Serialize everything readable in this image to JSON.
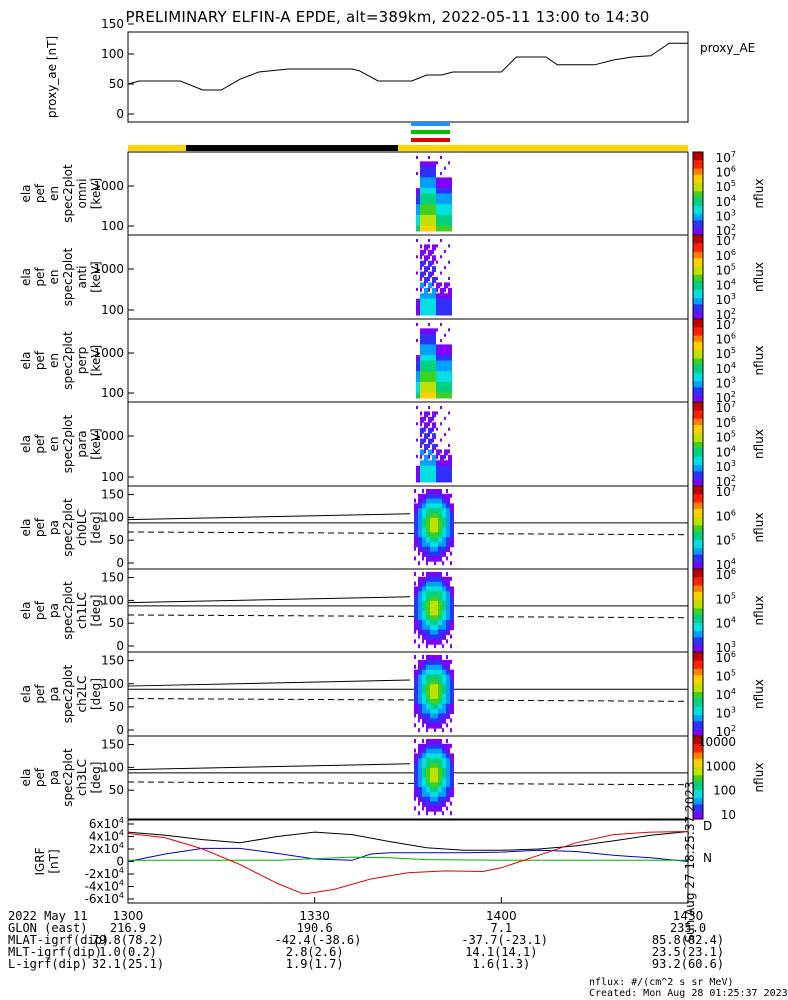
{
  "title": "PRELIMINARY ELFIN-A EPDE, alt=389km, 2022-05-11 13:00 to 14:30",
  "side_stamp": "Sun Aug 27 18:25:37 2023",
  "colors": {
    "science_bar": "#ffd400",
    "science_bar_dark": "#000000",
    "indicator_blue": "#1e90ff",
    "indicator_green": "#00c000",
    "indicator_red": "#e00000",
    "colorbar": [
      "#ffffff",
      "#7f00ff",
      "#3030ff",
      "#00a0ff",
      "#00e0e0",
      "#00d080",
      "#40d020",
      "#c0e000",
      "#ffd000",
      "#ff8000",
      "#ff2000",
      "#c00000"
    ]
  },
  "chart_data": [
    {
      "id": "proxy_ae",
      "type": "line",
      "title": "",
      "ylabel": "proxy_ae [nT]",
      "legend": "proxy_AE",
      "ylim": [
        0,
        150
      ],
      "yticks": [
        "0",
        "50",
        "100",
        "150"
      ],
      "x": [
        13.0,
        13.03,
        13.1,
        13.14,
        13.2,
        13.25,
        13.3,
        13.33,
        13.35,
        13.43,
        13.47,
        13.5,
        13.56,
        13.6,
        13.62,
        13.67,
        13.72,
        13.76,
        13.8,
        13.84,
        13.87,
        13.9,
        13.95,
        14.0,
        14.04,
        14.08,
        14.12,
        14.15,
        14.2,
        14.25,
        14.3,
        14.35,
        14.4,
        14.45,
        14.47,
        14.5
      ],
      "y": [
        50,
        55,
        55,
        55,
        40,
        40,
        58,
        65,
        70,
        75,
        75,
        75,
        75,
        75,
        72,
        55,
        55,
        55,
        65,
        65,
        70,
        70,
        70,
        70,
        95,
        95,
        95,
        82,
        82,
        82,
        90,
        95,
        97,
        118,
        118,
        118
      ]
    },
    {
      "id": "omni",
      "type": "heatmap",
      "ylabel": [
        "ela",
        "pef",
        "en",
        "spec2plot",
        "omni",
        "[keV]"
      ],
      "yticks": [
        "100",
        "1000"
      ],
      "colorbar_label": "nflux",
      "colorbar_ticks": [
        "10^2",
        "10^3",
        "10^4",
        "10^5",
        "10^6",
        "10^7"
      ]
    },
    {
      "id": "anti",
      "type": "heatmap",
      "ylabel": [
        "ela",
        "pef",
        "en",
        "spec2plot",
        "anti",
        "[keV]"
      ],
      "yticks": [
        "100",
        "1000"
      ],
      "colorbar_label": "nflux",
      "colorbar_ticks": [
        "10^2",
        "10^3",
        "10^4",
        "10^5",
        "10^6",
        "10^7"
      ]
    },
    {
      "id": "perp",
      "type": "heatmap",
      "ylabel": [
        "ela",
        "pef",
        "en",
        "spec2plot",
        "perp",
        "[keV]"
      ],
      "yticks": [
        "100",
        "1000"
      ],
      "colorbar_label": "nflux",
      "colorbar_ticks": [
        "10^2",
        "10^3",
        "10^4",
        "10^5",
        "10^6",
        "10^7"
      ]
    },
    {
      "id": "para",
      "type": "heatmap",
      "ylabel": [
        "ela",
        "pef",
        "en",
        "spec2plot",
        "para",
        "[keV]"
      ],
      "yticks": [
        "100",
        "1000"
      ],
      "colorbar_label": "nflux",
      "colorbar_ticks": [
        "10^2",
        "10^3",
        "10^4",
        "10^5",
        "10^6",
        "10^7"
      ]
    },
    {
      "id": "ch0LC",
      "type": "heatmap",
      "ylabel": [
        "ela",
        "pef",
        "pa",
        "spec2plot",
        "ch0LC",
        "[deg]"
      ],
      "yticks": [
        "0",
        "50",
        "100",
        "150"
      ],
      "colorbar_label": "nflux",
      "colorbar_ticks": [
        "10^4",
        "10^5",
        "10^6",
        "10^7"
      ]
    },
    {
      "id": "ch1LC",
      "type": "heatmap",
      "ylabel": [
        "ela",
        "pef",
        "pa",
        "spec2plot",
        "ch1LC",
        "[deg]"
      ],
      "yticks": [
        "0",
        "50",
        "100",
        "150"
      ],
      "colorbar_label": "nflux",
      "colorbar_ticks": [
        "10^3",
        "10^4",
        "10^5",
        "10^6"
      ]
    },
    {
      "id": "ch2LC",
      "type": "heatmap",
      "ylabel": [
        "ela",
        "pef",
        "pa",
        "spec2plot",
        "ch2LC",
        "[deg]"
      ],
      "yticks": [
        "0",
        "50",
        "100",
        "150"
      ],
      "colorbar_label": "nflux",
      "colorbar_ticks": [
        "10^2",
        "10^3",
        "10^4",
        "10^5",
        "10^6"
      ]
    },
    {
      "id": "ch3LC",
      "type": "heatmap",
      "ylabel": [
        "ela",
        "pef",
        "pa",
        "spec2plot",
        "ch3LC",
        "[deg]"
      ],
      "yticks": [
        "50",
        "100",
        "150"
      ],
      "colorbar_label": "nflux",
      "colorbar_ticks": [
        "10",
        "100",
        "1000",
        "10000"
      ]
    },
    {
      "id": "igrf",
      "type": "line",
      "ylabel": [
        "IGRF",
        "[nT]"
      ],
      "ylim": [
        -60000,
        60000
      ],
      "yticks": [
        "-6x10^4",
        "-4x10^4",
        "-2x10^4",
        "0",
        "2x10^4",
        "4x10^4",
        "6x10^4"
      ],
      "legend_labels": [
        "D",
        "N"
      ],
      "series": [
        {
          "name": "",
          "color": "#000000",
          "x": [
            13.0,
            13.1,
            13.2,
            13.3,
            13.4,
            13.5,
            13.6,
            13.7,
            13.8,
            13.9,
            14.0,
            14.1,
            14.2,
            14.3,
            14.4,
            14.5
          ],
          "y": [
            47000,
            42000,
            35000,
            30000,
            40000,
            47000,
            43000,
            32000,
            22000,
            18000,
            18000,
            20000,
            25000,
            33000,
            42000,
            48000
          ]
        },
        {
          "name": "",
          "color": "#0000c0",
          "x": [
            13.0,
            13.1,
            13.2,
            13.3,
            13.4,
            13.5,
            13.6,
            13.65,
            13.7,
            13.8,
            13.9,
            14.0,
            14.1,
            14.2,
            14.3,
            14.4,
            14.5
          ],
          "y": [
            0,
            12000,
            21000,
            21000,
            13000,
            4000,
            2000,
            12000,
            14000,
            14000,
            14000,
            15000,
            18000,
            16000,
            10000,
            6000,
            0
          ]
        },
        {
          "name": "",
          "color": "#00b000",
          "x": [
            13.0,
            13.2,
            13.4,
            13.6,
            13.7,
            13.8,
            14.0,
            14.2,
            14.4,
            14.5
          ],
          "y": [
            2000,
            2000,
            2000,
            7000,
            6000,
            3000,
            2000,
            2000,
            2000,
            2000
          ]
        },
        {
          "name": "",
          "color": "#e00000",
          "x": [
            13.0,
            13.1,
            13.2,
            13.3,
            13.4,
            13.47,
            13.55,
            13.65,
            13.75,
            13.85,
            13.95,
            14.0,
            14.1,
            14.2,
            14.3,
            14.4,
            14.5
          ],
          "y": [
            45000,
            38000,
            20000,
            -5000,
            -35000,
            -52000,
            -45000,
            -28000,
            -18000,
            -15000,
            -16000,
            -10000,
            10000,
            30000,
            43000,
            47000,
            48000
          ]
        }
      ]
    }
  ],
  "x_axis": {
    "date_label": "2022 May 11",
    "ticks": [
      "1300",
      "1330",
      "1400",
      "1430"
    ]
  },
  "footer_rows": [
    {
      "label": "GLON (east)",
      "values": [
        "216.9",
        "190.6",
        "7.1",
        "235.0"
      ]
    },
    {
      "label": "MLAT-igrf(dip)",
      "values": [
        "79.8(78.2)",
        "-42.4(-38.6)",
        "-37.7(-23.1)",
        "85.8(82.4)"
      ]
    },
    {
      "label": "MLT-igrf(dip)",
      "values": [
        "1.0(0.2)",
        "2.8(2.6)",
        "14.1(14.1)",
        "23.5(23.1)"
      ]
    },
    {
      "label": "L-igrf(dip)",
      "values": [
        "32.1(25.1)",
        "1.9(1.7)",
        "1.6(1.3)",
        "93.2(60.6)"
      ]
    }
  ],
  "footnote_units": "nflux: #/(cm^2 s sr MeV)",
  "footnote_created": "Created: Mon Aug 28 01:25:37 2023"
}
